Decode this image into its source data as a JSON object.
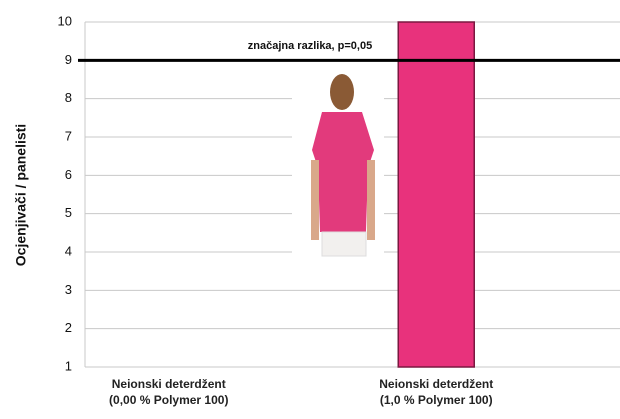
{
  "chart_data": {
    "type": "bar",
    "y_label": "Ocjenjivači / panelisti",
    "categories": [
      "Neionski deterdžent\n(0,00 % Polymer 100)",
      "Neionski deterdžent\n(1,0 % Polymer 100)"
    ],
    "values": [
      1,
      10
    ],
    "colors": [
      "#8a6f74",
      "#e8327c"
    ],
    "ylim": [
      1,
      10
    ],
    "yticks": [
      1,
      2,
      3,
      4,
      5,
      6,
      7,
      8,
      9,
      10
    ],
    "grid": true,
    "reference_line": {
      "value": 9,
      "label": "značajna razlika, p=0,05"
    }
  }
}
